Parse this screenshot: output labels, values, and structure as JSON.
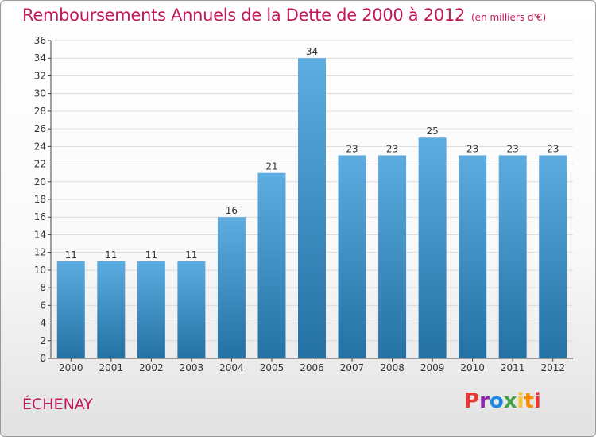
{
  "header": {
    "title": "Remboursements Annuels de la Dette de 2000 à 2012",
    "subtitle": "(en milliers d'€)"
  },
  "footer": {
    "place": "ÉCHENAY",
    "logo_letters": [
      "P",
      "r",
      "o",
      "x",
      "i",
      "t",
      "i"
    ],
    "logo_colors": [
      "#e53935",
      "#8e24aa",
      "#1e88e5",
      "#43a047",
      "#fbc02d",
      "#fb8c00",
      "#e53935"
    ]
  },
  "colors": {
    "accent": "#c2185b",
    "bar_top": "#5dade2",
    "bar_bottom": "#2471a3",
    "grid": "#dcdcdc"
  },
  "chart_data": {
    "type": "bar",
    "title": "Remboursements Annuels de la Dette de 2000 à 2012",
    "subtitle": "(en milliers d'€)",
    "categories": [
      "2000",
      "2001",
      "2002",
      "2003",
      "2004",
      "2005",
      "2006",
      "2007",
      "2008",
      "2009",
      "2010",
      "2011",
      "2012"
    ],
    "values": [
      11,
      11,
      11,
      11,
      16,
      21,
      34,
      23,
      23,
      25,
      23,
      23,
      23
    ],
    "ylim": [
      0,
      36
    ],
    "ytick_step": 2,
    "grid": true,
    "legend": "none"
  }
}
